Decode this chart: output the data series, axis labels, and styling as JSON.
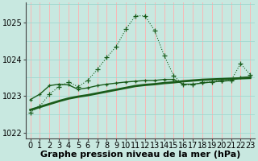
{
  "xlabel": "Graphe pression niveau de la mer (hPa)",
  "bg_color": "#c8e8e0",
  "grid_color_v": "#ffb0b0",
  "grid_color_h": "#a0d8d0",
  "line_color": "#1a5c1a",
  "x": [
    0,
    1,
    2,
    3,
    4,
    5,
    6,
    7,
    8,
    9,
    10,
    11,
    12,
    13,
    14,
    15,
    16,
    17,
    18,
    19,
    20,
    21,
    22,
    23
  ],
  "line_dotted": [
    1022.55,
    1022.72,
    1023.05,
    1023.25,
    1023.38,
    1023.25,
    1023.42,
    1023.72,
    1024.05,
    1024.35,
    1024.82,
    1025.18,
    1025.18,
    1024.78,
    1024.1,
    1023.55,
    1023.3,
    1023.3,
    1023.38,
    1023.38,
    1023.42,
    1023.42,
    1023.88,
    1023.58
  ],
  "line_solid_markers": [
    1022.9,
    1023.05,
    1023.28,
    1023.32,
    1023.3,
    1023.18,
    1023.22,
    1023.28,
    1023.32,
    1023.35,
    1023.38,
    1023.4,
    1023.42,
    1023.42,
    1023.45,
    1023.45,
    1023.32,
    1023.32,
    1023.35,
    1023.38,
    1023.4,
    1023.42,
    1023.5,
    1023.52
  ],
  "line_thick": [
    1022.62,
    1022.7,
    1022.78,
    1022.86,
    1022.93,
    1022.98,
    1023.02,
    1023.07,
    1023.12,
    1023.17,
    1023.22,
    1023.27,
    1023.3,
    1023.32,
    1023.35,
    1023.37,
    1023.4,
    1023.42,
    1023.44,
    1023.45,
    1023.46,
    1023.47,
    1023.48,
    1023.49
  ],
  "ylim": [
    1021.85,
    1025.55
  ],
  "yticks": [
    1022,
    1023,
    1024,
    1025
  ],
  "xticks": [
    0,
    1,
    2,
    3,
    4,
    5,
    6,
    7,
    8,
    9,
    10,
    11,
    12,
    13,
    14,
    15,
    16,
    17,
    18,
    19,
    20,
    21,
    22,
    23
  ],
  "xlabel_fontsize": 8,
  "tick_fontsize": 7
}
